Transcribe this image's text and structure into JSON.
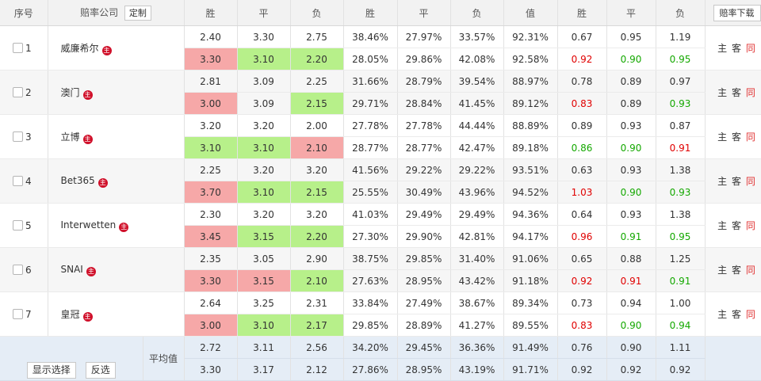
{
  "header": {
    "index": "序号",
    "company": "赔率公司",
    "custom": "定制",
    "odds_cols": [
      "胜",
      "平",
      "负"
    ],
    "prob_cols": [
      "胜",
      "平",
      "负"
    ],
    "value": "值",
    "kelly_cols": [
      "胜",
      "平",
      "负"
    ],
    "download": "赔率下载"
  },
  "action": {
    "home": "主",
    "away": "客",
    "same": "同"
  },
  "companies": [
    {
      "idx": "1",
      "name": "威廉希尔",
      "r1": [
        "2.40",
        "3.30",
        "2.75",
        "38.46%",
        "27.97%",
        "33.57%",
        "92.31%",
        "0.67",
        "0.95",
        "1.19"
      ],
      "r2": [
        "3.30",
        "3.10",
        "2.20",
        "28.05%",
        "29.86%",
        "42.08%",
        "92.58%",
        "0.92",
        "0.90",
        "0.95"
      ]
    },
    {
      "idx": "2",
      "name": "澳门",
      "r1": [
        "2.81",
        "3.09",
        "2.25",
        "31.66%",
        "28.79%",
        "39.54%",
        "88.97%",
        "0.78",
        "0.89",
        "0.97"
      ],
      "r2": [
        "3.00",
        "3.09",
        "2.15",
        "29.71%",
        "28.84%",
        "41.45%",
        "89.12%",
        "0.83",
        "0.89",
        "0.93"
      ]
    },
    {
      "idx": "3",
      "name": "立博",
      "r1": [
        "3.20",
        "3.20",
        "2.00",
        "27.78%",
        "27.78%",
        "44.44%",
        "88.89%",
        "0.89",
        "0.93",
        "0.87"
      ],
      "r2": [
        "3.10",
        "3.10",
        "2.10",
        "28.77%",
        "28.77%",
        "42.47%",
        "89.18%",
        "0.86",
        "0.90",
        "0.91"
      ]
    },
    {
      "idx": "4",
      "name": "Bet365",
      "r1": [
        "2.25",
        "3.20",
        "3.20",
        "41.56%",
        "29.22%",
        "29.22%",
        "93.51%",
        "0.63",
        "0.93",
        "1.38"
      ],
      "r2": [
        "3.70",
        "3.10",
        "2.15",
        "25.55%",
        "30.49%",
        "43.96%",
        "94.52%",
        "1.03",
        "0.90",
        "0.93"
      ]
    },
    {
      "idx": "5",
      "name": "Interwetten",
      "r1": [
        "2.30",
        "3.20",
        "3.20",
        "41.03%",
        "29.49%",
        "29.49%",
        "94.36%",
        "0.64",
        "0.93",
        "1.38"
      ],
      "r2": [
        "3.45",
        "3.15",
        "2.20",
        "27.30%",
        "29.90%",
        "42.81%",
        "94.17%",
        "0.96",
        "0.91",
        "0.95"
      ]
    },
    {
      "idx": "6",
      "name": "SNAI",
      "r1": [
        "2.35",
        "3.05",
        "2.90",
        "38.75%",
        "29.85%",
        "31.40%",
        "91.06%",
        "0.65",
        "0.88",
        "1.25"
      ],
      "r2": [
        "3.30",
        "3.15",
        "2.10",
        "27.63%",
        "28.95%",
        "43.42%",
        "91.18%",
        "0.92",
        "0.91",
        "0.91"
      ]
    },
    {
      "idx": "7",
      "name": "皇冠",
      "r1": [
        "2.64",
        "3.25",
        "2.31",
        "33.84%",
        "27.49%",
        "38.67%",
        "89.34%",
        "0.73",
        "0.94",
        "1.00"
      ],
      "r2": [
        "3.00",
        "3.10",
        "2.17",
        "29.85%",
        "28.89%",
        "41.27%",
        "89.55%",
        "0.83",
        "0.90",
        "0.94"
      ]
    }
  ],
  "summary": {
    "show_selected": "显示选择",
    "invert": "反选",
    "avg_label": "平均值",
    "r1": [
      "2.72",
      "3.11",
      "2.56",
      "34.20%",
      "29.45%",
      "36.36%",
      "91.49%",
      "0.76",
      "0.90",
      "1.11"
    ],
    "r2": [
      "3.30",
      "3.17",
      "2.12",
      "27.86%",
      "28.95%",
      "43.19%",
      "91.71%",
      "0.92",
      "0.92",
      "0.92"
    ]
  },
  "colors": {
    "cell_up_bg": "#f6a8a8",
    "cell_down_bg": "#b7f08a",
    "text_up": "#e00000",
    "text_down": "#14a800",
    "company_icon": "#d0102a"
  }
}
